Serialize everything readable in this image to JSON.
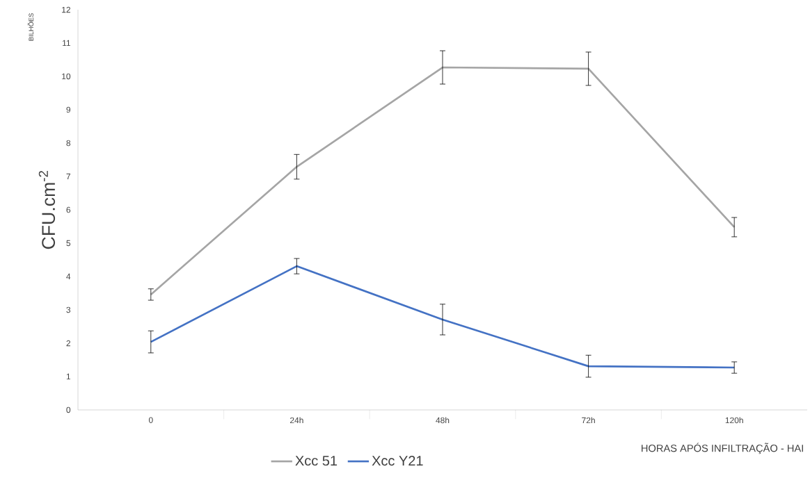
{
  "chart_data": {
    "type": "line",
    "ylabel": "CFU.cm$^{-2}$",
    "xlabel": "HORAS APÓS INFILTRAÇÃO - HAI",
    "annotations": [
      "BILHÕES"
    ],
    "categories": [
      "0",
      "24h",
      "48h",
      "72h",
      "120h"
    ],
    "ylim": [
      0,
      12
    ],
    "yticks": [
      0,
      1,
      2,
      3,
      4,
      5,
      6,
      7,
      8,
      9,
      10,
      11,
      12
    ],
    "grid": false,
    "legend": "bottom",
    "marker": "none",
    "line_style": "solid",
    "series": [
      {
        "name": "Xcc 51",
        "color": "#a5a5a5",
        "values": [
          3.46,
          7.29,
          10.27,
          10.23,
          5.48
        ],
        "errors": [
          0.17,
          0.37,
          0.5,
          0.5,
          0.29
        ]
      },
      {
        "name": "Xcc Y21",
        "color": "#4472c4",
        "values": [
          2.04,
          4.31,
          2.71,
          1.31,
          1.27
        ],
        "errors": [
          0.33,
          0.23,
          0.46,
          0.33,
          0.17
        ]
      }
    ]
  }
}
